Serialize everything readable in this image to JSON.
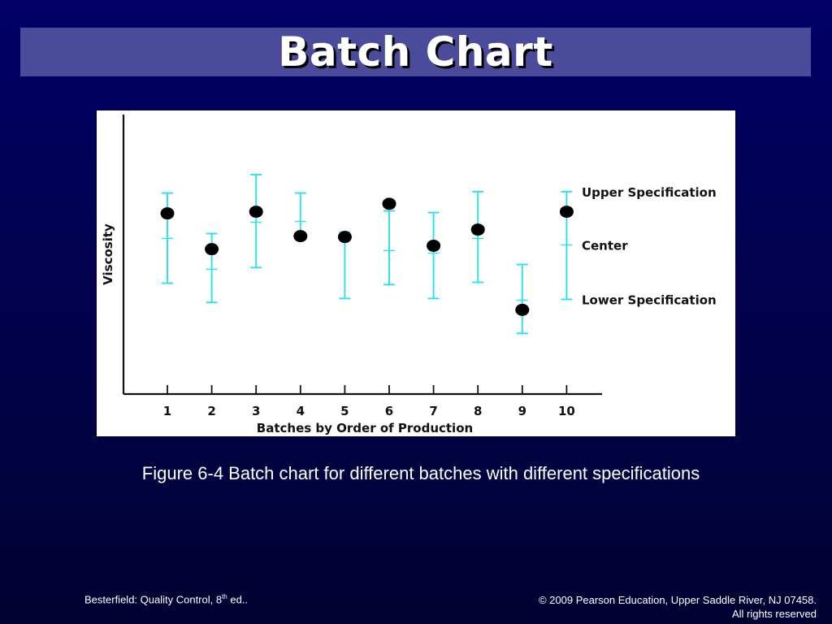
{
  "slide": {
    "title": "Batch Chart",
    "caption": "Figure 6-4 Batch chart for different batches with different specifications",
    "footer_left_main": "Besterfield: Quality Control, 8",
    "footer_left_sup": "th",
    "footer_left_tail": " ed..",
    "footer_right_line1": "© 2009 Pearson Education, Upper Saddle River, NJ 07458.",
    "footer_right_line2": "All rights reserved"
  },
  "colors": {
    "spec_bar": "#33e0f0",
    "point": "#000000",
    "axis": "#111111"
  },
  "chart_data": {
    "type": "scatter",
    "xlabel": "Batches by Order of Production",
    "ylabel": "Viscosity",
    "categories": [
      "1",
      "2",
      "3",
      "4",
      "5",
      "6",
      "7",
      "8",
      "9",
      "10"
    ],
    "ylim": [
      0,
      100
    ],
    "legend_labels": {
      "upper": "Upper Specification",
      "center": "Center",
      "lower": "Lower Specification"
    },
    "upper_spec": [
      70.9,
      56.6,
      77.4,
      70.9,
      57.1,
      64.6,
      64.0,
      71.4,
      45.7,
      71.4
    ],
    "center": [
      54.9,
      44.0,
      60.6,
      60.9,
      56.6,
      50.6,
      49.7,
      54.9,
      33.1,
      52.6
    ],
    "lower_spec": [
      39.1,
      32.3,
      44.6,
      54.9,
      33.7,
      38.6,
      33.7,
      39.4,
      21.4,
      33.4
    ],
    "values": [
      63.7,
      51.1,
      64.3,
      55.7,
      55.4,
      67.1,
      52.3,
      58.0,
      29.7,
      64.3
    ],
    "grid": false
  }
}
